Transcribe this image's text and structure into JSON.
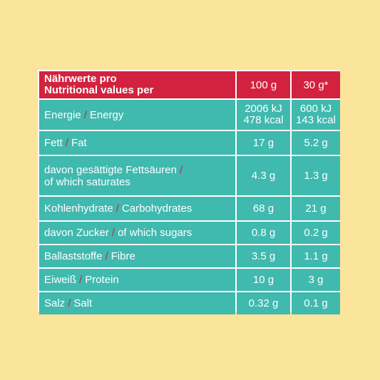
{
  "header": {
    "label_de": "Nährwerte pro",
    "label_en": "Nutritional values per",
    "col1": "100 g",
    "col2": "30 g*"
  },
  "separator": "/",
  "rows": [
    {
      "de": "Energie",
      "en": "Energy",
      "v1": [
        "2006 kJ",
        "478 kcal"
      ],
      "v2": [
        "600 kJ",
        "143 kcal"
      ]
    },
    {
      "de": "Fett",
      "en": "Fat",
      "v1": [
        "17 g"
      ],
      "v2": [
        "5.2 g"
      ]
    },
    {
      "de": "davon gesättigte Fettsäuren",
      "en": "of which saturates",
      "v1": [
        "4.3 g"
      ],
      "v2": [
        "1.3 g"
      ]
    },
    {
      "de": "Kohlenhydrate",
      "en": "Carbohydrates",
      "v1": [
        "68 g"
      ],
      "v2": [
        "21 g"
      ]
    },
    {
      "de": "davon Zucker",
      "en": "of which sugars",
      "v1": [
        "0.8 g"
      ],
      "v2": [
        "0.2 g"
      ]
    },
    {
      "de": "Ballaststoffe",
      "en": "Fibre",
      "v1": [
        "3.5 g"
      ],
      "v2": [
        "1.1 g"
      ]
    },
    {
      "de": "Eiweiß",
      "en": "Protein",
      "v1": [
        "10 g"
      ],
      "v2": [
        "3 g"
      ]
    },
    {
      "de": "Salz",
      "en": "Salt",
      "v1": [
        "0.32 g"
      ],
      "v2": [
        "0.1 g"
      ]
    }
  ],
  "colors": {
    "background": "#FBE49C",
    "header": "#D2223F",
    "row": "#40B9AE",
    "border": "#FFFFFF"
  }
}
